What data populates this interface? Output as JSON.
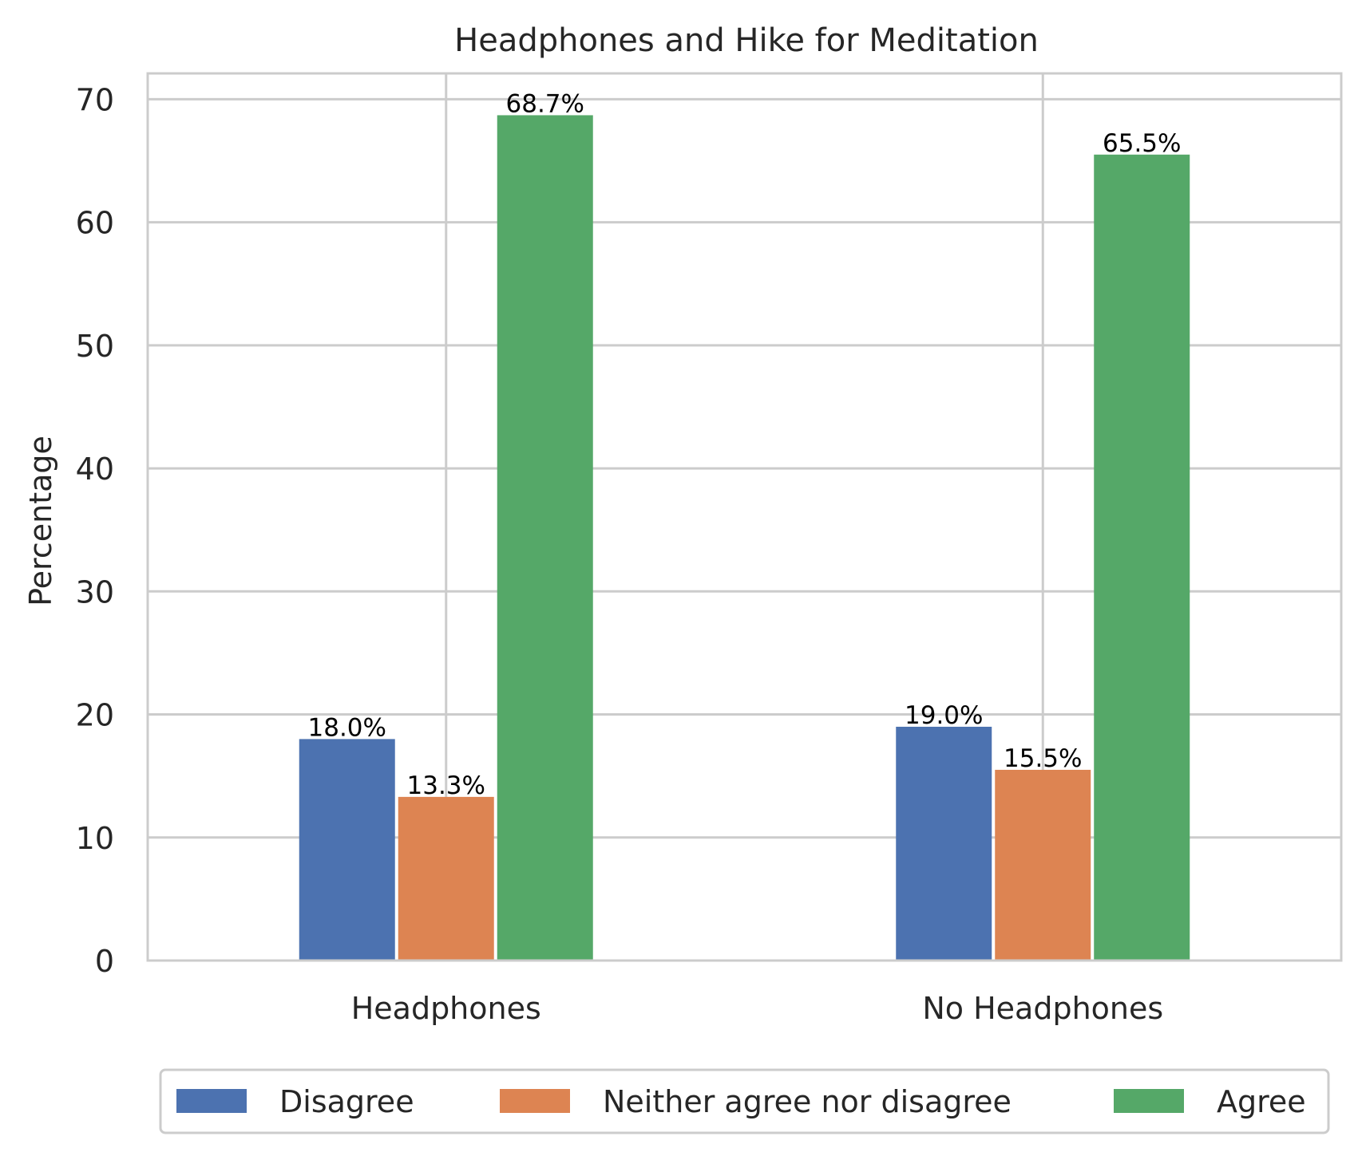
{
  "chart_data": {
    "type": "bar",
    "title": "Headphones and Hike for Meditation",
    "xlabel": "",
    "ylabel": "Percentage",
    "categories": [
      "Headphones",
      "No Headphones"
    ],
    "series": [
      {
        "name": "Disagree",
        "values": [
          18.0,
          19.0
        ],
        "labels": [
          "18.0%",
          "19.0%"
        ]
      },
      {
        "name": "Neither agree nor disagree",
        "values": [
          13.3,
          15.5
        ],
        "labels": [
          "13.3%",
          "15.5%"
        ]
      },
      {
        "name": "Agree",
        "values": [
          68.7,
          65.5
        ],
        "labels": [
          "68.7%",
          "65.5%"
        ]
      }
    ],
    "colors": [
      "#4c72b0",
      "#dd8452",
      "#55a868"
    ],
    "ylim": [
      0,
      72.1
    ],
    "yticks": [
      0,
      10,
      20,
      30,
      40,
      50,
      60,
      70
    ],
    "ytick_labels": [
      "0",
      "10",
      "20",
      "30",
      "40",
      "50",
      "60",
      "70"
    ],
    "grid": true,
    "legend_position": "bottom-center"
  }
}
